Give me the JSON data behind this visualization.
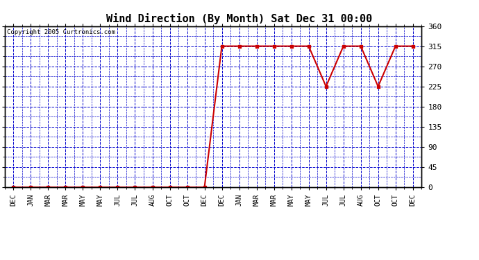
{
  "title": "Wind Direction (By Month) Sat Dec 31 00:00",
  "copyright": "Copyright 2005 Curtronics.com",
  "x_labels": [
    "DEC",
    "JAN",
    "MAR",
    "MAR",
    "MAY",
    "MAY",
    "JUL",
    "JUL",
    "AUG",
    "OCT",
    "OCT",
    "DEC",
    "DEC",
    "JAN",
    "MAR",
    "MAR",
    "MAY",
    "MAY",
    "JUL",
    "JUL",
    "AUG",
    "OCT",
    "OCT",
    "DEC"
  ],
  "y_values": [
    0,
    0,
    0,
    0,
    0,
    0,
    0,
    0,
    0,
    0,
    0,
    0,
    315,
    315,
    315,
    315,
    315,
    315,
    225,
    315,
    315,
    225,
    315,
    315
  ],
  "y_ticks": [
    0,
    45,
    90,
    135,
    180,
    225,
    270,
    315,
    360
  ],
  "ylim": [
    0,
    360
  ],
  "line_color": "#cc0000",
  "marker_color": "#cc0000",
  "grid_color": "#0000cc",
  "background_color": "#ffffff",
  "border_color": "#000000",
  "title_fontsize": 11,
  "copyright_fontsize": 6.5,
  "tick_fontsize": 8,
  "xlabel_fontsize": 7
}
